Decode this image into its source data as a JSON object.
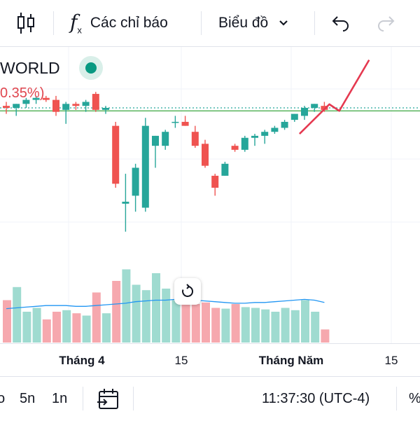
{
  "toolbar": {
    "indicators_label": "Các chỉ báo",
    "chart_type_label": "Biểu đồ"
  },
  "legend": {
    "symbol_partial": "WORLD",
    "change_partial": "0.35%)"
  },
  "colors": {
    "up": "#26a69a",
    "down": "#ef5350",
    "up_volume": "#9fdbd0",
    "down_volume": "#f6a8ae",
    "ma_line": "#2196f3",
    "hline_green": "#4caf50",
    "dotted_line": "#26a69a",
    "drawing": "#e53950"
  },
  "time_axis": {
    "labels": [
      "Tháng 4",
      "15",
      "Tháng Năm",
      "15"
    ]
  },
  "bottom_bar": {
    "interval_partial": "o",
    "interval_5d": "5n",
    "interval_1m": "1n",
    "time": "11:37:30 (UTC-4)",
    "percent_partial": "%"
  },
  "chart_data": {
    "type": "candlestick",
    "title": "",
    "xlabel": "",
    "ylabel": "",
    "candles": [
      {
        "o": 0.81,
        "h": 0.83,
        "l": 0.77,
        "c": 0.8
      },
      {
        "o": 0.8,
        "h": 0.82,
        "l": 0.76,
        "c": 0.82
      },
      {
        "o": 0.82,
        "h": 0.85,
        "l": 0.8,
        "c": 0.84
      },
      {
        "o": 0.84,
        "h": 0.86,
        "l": 0.82,
        "c": 0.85
      },
      {
        "o": 0.85,
        "h": 0.86,
        "l": 0.83,
        "c": 0.84
      },
      {
        "o": 0.84,
        "h": 0.86,
        "l": 0.76,
        "c": 0.78
      },
      {
        "o": 0.79,
        "h": 0.83,
        "l": 0.72,
        "c": 0.82
      },
      {
        "o": 0.82,
        "h": 0.83,
        "l": 0.79,
        "c": 0.81
      },
      {
        "o": 0.81,
        "h": 0.84,
        "l": 0.78,
        "c": 0.83
      },
      {
        "o": 0.87,
        "h": 0.88,
        "l": 0.78,
        "c": 0.79
      },
      {
        "o": 0.79,
        "h": 0.81,
        "l": 0.77,
        "c": 0.8
      },
      {
        "o": 0.71,
        "h": 0.73,
        "l": 0.4,
        "c": 0.42
      },
      {
        "o": 0.32,
        "h": 0.47,
        "l": 0.18,
        "c": 0.33
      },
      {
        "o": 0.36,
        "h": 0.52,
        "l": 0.28,
        "c": 0.5
      },
      {
        "o": 0.3,
        "h": 0.75,
        "l": 0.28,
        "c": 0.71
      },
      {
        "o": 0.61,
        "h": 0.66,
        "l": 0.5,
        "c": 0.66
      },
      {
        "o": 0.61,
        "h": 0.69,
        "l": 0.59,
        "c": 0.68
      },
      {
        "o": 0.73,
        "h": 0.76,
        "l": 0.7,
        "c": 0.73
      },
      {
        "o": 0.73,
        "h": 0.76,
        "l": 0.71,
        "c": 0.71
      },
      {
        "o": 0.68,
        "h": 0.71,
        "l": 0.6,
        "c": 0.61
      },
      {
        "o": 0.62,
        "h": 0.64,
        "l": 0.5,
        "c": 0.51
      },
      {
        "o": 0.46,
        "h": 0.47,
        "l": 0.36,
        "c": 0.4
      },
      {
        "o": 0.46,
        "h": 0.53,
        "l": 0.46,
        "c": 0.52
      },
      {
        "o": 0.61,
        "h": 0.62,
        "l": 0.58,
        "c": 0.59
      },
      {
        "o": 0.59,
        "h": 0.66,
        "l": 0.58,
        "c": 0.65
      },
      {
        "o": 0.65,
        "h": 0.67,
        "l": 0.61,
        "c": 0.66
      },
      {
        "o": 0.66,
        "h": 0.69,
        "l": 0.62,
        "c": 0.68
      },
      {
        "o": 0.68,
        "h": 0.71,
        "l": 0.67,
        "c": 0.7
      },
      {
        "o": 0.7,
        "h": 0.74,
        "l": 0.69,
        "c": 0.73
      },
      {
        "o": 0.74,
        "h": 0.77,
        "l": 0.73,
        "c": 0.77
      },
      {
        "o": 0.76,
        "h": 0.81,
        "l": 0.74,
        "c": 0.8
      },
      {
        "o": 0.8,
        "h": 0.82,
        "l": 0.78,
        "c": 0.82
      },
      {
        "o": 0.81,
        "h": 0.83,
        "l": 0.78,
        "c": 0.79
      }
    ],
    "volume": [
      0.55,
      0.72,
      0.4,
      0.45,
      0.3,
      0.4,
      0.42,
      0.38,
      0.35,
      0.65,
      0.38,
      0.8,
      0.95,
      0.75,
      0.68,
      0.9,
      0.7,
      0.55,
      0.6,
      0.5,
      0.52,
      0.45,
      0.44,
      0.5,
      0.46,
      0.45,
      0.43,
      0.4,
      0.45,
      0.42,
      0.55,
      0.4,
      0.17
    ],
    "ma": [
      0.44,
      0.45,
      0.46,
      0.47,
      0.48,
      0.48,
      0.48,
      0.47,
      0.47,
      0.48,
      0.49,
      0.5,
      0.51,
      0.53,
      0.54,
      0.55,
      0.55,
      0.56,
      0.56,
      0.55,
      0.54,
      0.53,
      0.52,
      0.51,
      0.51,
      0.52,
      0.52,
      0.53,
      0.54,
      0.55,
      0.56,
      0.55,
      0.52
    ],
    "horizontal_line": 0.785,
    "price_line": 0.8,
    "drawing_path": [
      [
        29.5,
        0.67
      ],
      [
        32.5,
        0.818
      ],
      [
        33.5,
        0.785
      ],
      [
        36.5,
        1.04
      ]
    ]
  }
}
